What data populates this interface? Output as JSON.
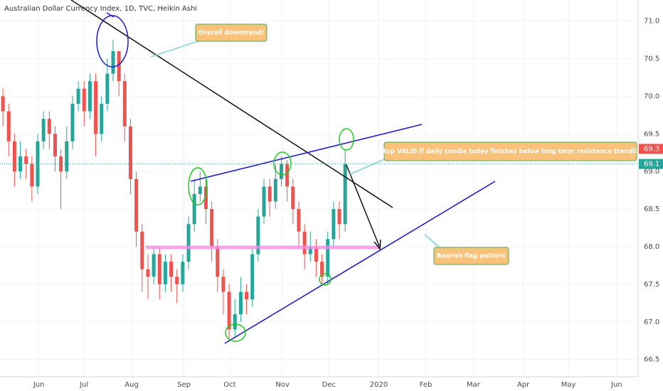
{
  "chart_data": {
    "type": "candlestick",
    "title": "Australian Dollar Currency Index, 1D, TVC, Heikin Ashi",
    "up_color": "#26a69a",
    "down_color": "#ef5350",
    "grid": true,
    "ylim": [
      66.27,
      71.28
    ],
    "yticks": [
      66.5,
      {
        "value": 67,
        "label": "67.0"
      },
      67.5,
      {
        "value": 68,
        "label": "68.0"
      },
      68.5,
      {
        "value": 69,
        "label": "69.0"
      },
      69.5,
      {
        "value": 70,
        "label": "70.0"
      },
      70.5,
      {
        "value": 71,
        "label": "71.0"
      }
    ],
    "xlim": [
      0,
      110
    ],
    "xticks": [
      {
        "value": 6.7,
        "label": "Jun"
      },
      {
        "value": 14.5,
        "label": "Jul"
      },
      {
        "value": 22.7,
        "label": "Aug"
      },
      {
        "value": 31.7,
        "label": "Sep"
      },
      {
        "value": 39.6,
        "label": "Oct"
      },
      {
        "value": 48.7,
        "label": "Nov"
      },
      {
        "value": 56.7,
        "label": "Dec"
      },
      {
        "value": 65.3,
        "label": "2020"
      },
      {
        "value": 73.4,
        "label": "Feb"
      },
      {
        "value": 81.6,
        "label": "Mar"
      },
      {
        "value": 90.2,
        "label": "Apr"
      },
      {
        "value": 98,
        "label": "May"
      },
      {
        "value": 106.3,
        "label": "Jun"
      }
    ],
    "open": [
      70.0,
      69.8,
      69.4,
      69.0,
      69.2,
      69.1,
      68.8,
      69.4,
      69.7,
      69.5,
      69.2,
      69.0,
      69.4,
      69.9,
      70.1,
      69.8,
      70.2,
      69.5,
      69.9,
      70.3,
      70.6,
      70.2,
      69.6,
      68.9,
      68.2,
      67.7,
      67.6,
      67.9,
      67.5,
      67.8,
      67.6,
      67.5,
      67.8,
      68.3,
      68.7,
      68.8,
      68.5,
      68.0,
      67.6,
      67.4,
      66.9,
      67.1,
      67.4,
      67.3,
      67.9,
      68.4,
      68.8,
      68.6,
      68.9,
      69.1,
      68.8,
      68.5,
      68.2,
      67.9,
      68.0,
      67.8,
      67.6,
      68.1,
      68.5,
      68.3
    ],
    "close": [
      69.8,
      69.4,
      69.0,
      69.2,
      69.1,
      68.8,
      69.4,
      69.7,
      69.5,
      69.2,
      69.0,
      69.4,
      69.9,
      70.1,
      69.8,
      70.2,
      69.5,
      69.9,
      70.3,
      70.6,
      70.2,
      69.6,
      68.9,
      68.2,
      67.7,
      67.6,
      67.9,
      67.5,
      67.8,
      67.6,
      67.5,
      67.8,
      68.3,
      68.7,
      68.8,
      68.5,
      68.0,
      67.6,
      67.4,
      66.9,
      67.1,
      67.4,
      67.3,
      67.9,
      68.4,
      68.8,
      68.6,
      68.9,
      69.1,
      68.8,
      68.5,
      68.2,
      67.9,
      68.0,
      67.8,
      67.6,
      68.1,
      68.5,
      68.3,
      69.1
    ],
    "high": [
      70.1,
      69.9,
      69.5,
      69.4,
      69.3,
      69.2,
      69.5,
      69.8,
      69.8,
      69.6,
      69.3,
      69.6,
      70.0,
      70.2,
      70.2,
      70.3,
      70.3,
      70.0,
      70.5,
      70.75,
      70.6,
      70.3,
      69.7,
      69.0,
      68.3,
      67.9,
      68.0,
      68.0,
      67.9,
      67.9,
      67.7,
      67.9,
      68.4,
      68.9,
      69.0,
      68.9,
      68.6,
      68.1,
      67.7,
      67.5,
      67.3,
      67.6,
      67.5,
      68.0,
      68.5,
      68.9,
      68.9,
      69.1,
      69.2,
      69.15,
      68.9,
      68.6,
      68.3,
      68.2,
      68.1,
      67.9,
      68.2,
      68.6,
      68.6,
      69.3
    ],
    "low": [
      69.6,
      69.2,
      68.8,
      68.9,
      68.9,
      68.6,
      68.7,
      69.3,
      69.3,
      69.0,
      68.5,
      68.9,
      69.3,
      69.8,
      69.6,
      69.7,
      69.2,
      69.4,
      69.8,
      70.2,
      70.0,
      69.4,
      68.7,
      68.0,
      67.4,
      67.3,
      67.5,
      67.3,
      67.4,
      67.4,
      67.25,
      67.4,
      67.7,
      68.2,
      68.6,
      68.3,
      67.8,
      67.4,
      67.1,
      66.75,
      66.8,
      67.0,
      67.1,
      67.2,
      67.8,
      68.3,
      68.4,
      68.5,
      68.8,
      68.6,
      68.3,
      68.0,
      67.7,
      67.8,
      67.6,
      67.5,
      67.5,
      68.0,
      68.1,
      68.2
    ],
    "price_tags": [
      {
        "value": 69.3,
        "color": "#ef5350"
      },
      {
        "value": 69.1,
        "color": "#26a69a"
      }
    ],
    "annotations": [
      "Overall downtrend!",
      "Setup VALID if daily candle today finishes below long term resistence trendline",
      "Bearish flag pattern"
    ]
  }
}
